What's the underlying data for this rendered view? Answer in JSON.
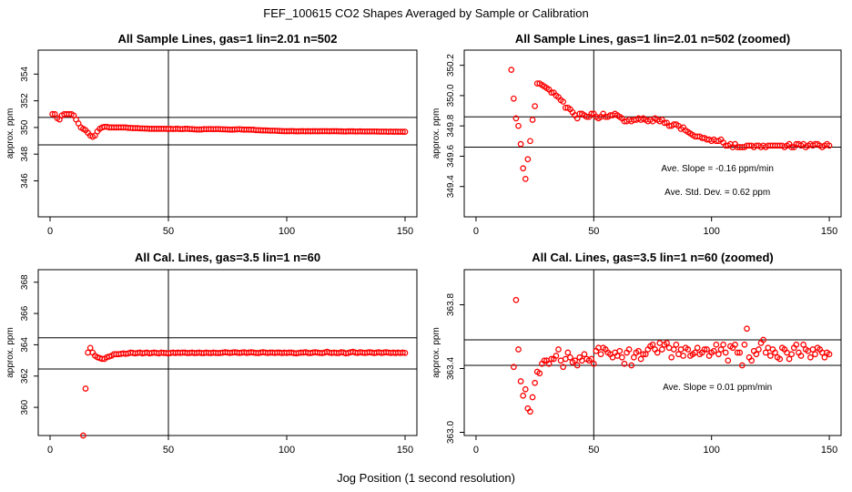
{
  "figure": {
    "title": "FEF_100615  CO2 Shapes Averaged by Sample or Calibration",
    "xlabel": "Jog Position (1 second resolution)"
  },
  "colors": {
    "points": "#ff0000",
    "lines": "#000000"
  },
  "chart_data": [
    {
      "type": "scatter",
      "title": "All Sample Lines, gas=1 lin=2.01 n=502",
      "ylabel": "approx. ppm",
      "xlim": [
        -5,
        155
      ],
      "ylim": [
        343.3,
        355.8
      ],
      "xticks": [
        0,
        50,
        100,
        150
      ],
      "yticks": [
        346,
        348,
        350,
        352,
        354
      ],
      "vline": 50,
      "hlines": [
        350.75,
        348.7
      ],
      "annotations": [],
      "x": [
        1,
        2,
        3,
        4,
        5,
        6,
        7,
        8,
        9,
        10,
        11,
        12,
        13,
        14,
        15,
        16,
        17,
        18,
        19,
        20,
        21,
        22,
        23,
        24,
        25,
        26,
        27,
        28,
        29,
        30,
        31,
        32,
        33,
        34,
        35,
        36,
        37,
        38,
        39,
        40,
        41,
        42,
        43,
        44,
        45,
        46,
        47,
        48,
        49,
        50,
        51,
        52,
        53,
        54,
        55,
        56,
        57,
        58,
        59,
        60,
        61,
        62,
        63,
        64,
        65,
        66,
        67,
        68,
        69,
        70,
        71,
        72,
        73,
        74,
        75,
        76,
        77,
        78,
        79,
        80,
        81,
        82,
        83,
        84,
        85,
        86,
        87,
        88,
        89,
        90,
        91,
        92,
        93,
        94,
        95,
        96,
        97,
        98,
        99,
        100,
        101,
        102,
        103,
        104,
        105,
        106,
        107,
        108,
        109,
        110,
        111,
        112,
        113,
        114,
        115,
        116,
        117,
        118,
        119,
        120,
        121,
        122,
        123,
        124,
        125,
        126,
        127,
        128,
        129,
        130,
        131,
        132,
        133,
        134,
        135,
        136,
        137,
        138,
        139,
        140,
        141,
        142,
        143,
        144,
        145,
        146,
        147,
        148,
        149,
        150
      ],
      "y": [
        351.0,
        351.0,
        350.7,
        350.6,
        350.9,
        351.0,
        351.0,
        351.0,
        351.0,
        350.9,
        350.6,
        350.3,
        350.0,
        349.9,
        349.8,
        349.6,
        349.4,
        349.3,
        349.4,
        349.7,
        349.9,
        350.0,
        350.05,
        350.05,
        350.0,
        350.0,
        350.0,
        350.0,
        350.0,
        350.0,
        350.0,
        350.0,
        349.97,
        349.97,
        349.95,
        349.95,
        349.95,
        349.93,
        349.93,
        349.92,
        349.92,
        349.9,
        349.9,
        349.9,
        349.9,
        349.9,
        349.9,
        349.9,
        349.9,
        349.88,
        349.9,
        349.88,
        349.9,
        349.9,
        349.88,
        349.88,
        349.9,
        349.9,
        349.88,
        349.88,
        349.86,
        349.85,
        349.85,
        349.85,
        349.88,
        349.87,
        349.88,
        349.88,
        349.87,
        349.88,
        349.88,
        349.87,
        349.86,
        349.86,
        349.85,
        349.84,
        349.84,
        349.85,
        349.86,
        349.87,
        349.85,
        349.84,
        349.84,
        349.84,
        349.83,
        349.83,
        349.8,
        349.8,
        349.79,
        349.78,
        349.78,
        349.77,
        349.76,
        349.76,
        349.76,
        349.75,
        349.74,
        349.73,
        349.72,
        349.72,
        349.72,
        349.73,
        349.72,
        349.71,
        349.71,
        349.72,
        349.72,
        349.71,
        349.72,
        349.71,
        349.72,
        349.72,
        349.71,
        349.72,
        349.72,
        349.72,
        349.72,
        349.71,
        349.72,
        349.72,
        349.72,
        349.71,
        349.71,
        349.7,
        349.7,
        349.71,
        349.71,
        349.71,
        349.7,
        349.7,
        349.71,
        349.7,
        349.7,
        349.7,
        349.7,
        349.7,
        349.7,
        349.7,
        349.69,
        349.69,
        349.69,
        349.69,
        349.68,
        349.69,
        349.68,
        349.69,
        349.68,
        349.68,
        349.68,
        349.68
      ]
    },
    {
      "type": "scatter",
      "title": "All Sample Lines, gas=1 lin=2.01 n=502 (zoomed)",
      "ylabel": "approx. ppm",
      "xlim": [
        -5,
        155
      ],
      "ylim": [
        349.2,
        350.3
      ],
      "xticks": [
        0,
        50,
        100,
        150
      ],
      "yticks": [
        349.4,
        349.6,
        349.8,
        350.0,
        350.2
      ],
      "vline": 50,
      "hlines": [
        349.86,
        349.66
      ],
      "annotations": [
        "Ave. Slope =  -0.16  ppm/min",
        "Ave. Std. Dev. =  0.62  ppm"
      ],
      "x": [
        15,
        16,
        17,
        18,
        19,
        20,
        21,
        22,
        23,
        24,
        25,
        26,
        27,
        28,
        29,
        30,
        31,
        32,
        33,
        34,
        35,
        36,
        37,
        38,
        39,
        40,
        41,
        42,
        43,
        44,
        45,
        46,
        47,
        48,
        49,
        50,
        51,
        52,
        53,
        54,
        55,
        56,
        57,
        58,
        59,
        60,
        61,
        62,
        63,
        64,
        65,
        66,
        67,
        68,
        69,
        70,
        71,
        72,
        73,
        74,
        75,
        76,
        77,
        78,
        79,
        80,
        81,
        82,
        83,
        84,
        85,
        86,
        87,
        88,
        89,
        90,
        91,
        92,
        93,
        94,
        95,
        96,
        97,
        98,
        99,
        100,
        101,
        102,
        103,
        104,
        105,
        106,
        107,
        108,
        109,
        110,
        111,
        112,
        113,
        114,
        115,
        116,
        117,
        118,
        119,
        120,
        121,
        122,
        123,
        124,
        125,
        126,
        127,
        128,
        129,
        130,
        131,
        132,
        133,
        134,
        135,
        136,
        137,
        138,
        139,
        140,
        141,
        142,
        143,
        144,
        145,
        146,
        147,
        148,
        149,
        150
      ],
      "y": [
        350.17,
        349.98,
        349.85,
        349.8,
        349.68,
        349.52,
        349.45,
        349.58,
        349.7,
        349.84,
        349.93,
        350.08,
        350.08,
        350.07,
        350.06,
        350.05,
        350.04,
        350.02,
        350.02,
        350.0,
        349.99,
        349.97,
        349.96,
        349.92,
        349.92,
        349.91,
        349.89,
        349.87,
        349.85,
        349.88,
        349.88,
        349.87,
        349.86,
        349.86,
        349.88,
        349.88,
        349.86,
        349.85,
        349.86,
        349.88,
        349.86,
        349.86,
        349.87,
        349.87,
        349.88,
        349.87,
        349.86,
        349.85,
        349.83,
        349.83,
        349.84,
        349.83,
        349.84,
        349.84,
        349.85,
        349.84,
        349.85,
        349.84,
        349.83,
        349.84,
        349.83,
        349.85,
        349.84,
        349.83,
        349.84,
        349.82,
        349.82,
        349.8,
        349.8,
        349.81,
        349.81,
        349.8,
        349.78,
        349.79,
        349.77,
        349.76,
        349.75,
        349.74,
        349.73,
        349.73,
        349.73,
        349.72,
        349.72,
        349.71,
        349.71,
        349.7,
        349.71,
        349.7,
        349.7,
        349.71,
        349.69,
        349.67,
        349.67,
        349.68,
        349.66,
        349.68,
        349.66,
        349.66,
        349.66,
        349.66,
        349.67,
        349.67,
        349.67,
        349.66,
        349.67,
        349.67,
        349.66,
        349.67,
        349.66,
        349.67,
        349.67,
        349.67,
        349.67,
        349.67,
        349.67,
        349.67,
        349.66,
        349.67,
        349.68,
        349.66,
        349.66,
        349.68,
        349.68,
        349.67,
        349.68,
        349.66,
        349.67,
        349.68,
        349.67,
        349.68,
        349.68,
        349.67,
        349.66,
        349.67,
        349.68,
        349.67
      ]
    },
    {
      "type": "scatter",
      "title": "All Cal. Lines, gas=3.5 lin=1 n=60",
      "ylabel": "approx. ppm",
      "xlim": [
        -5,
        155
      ],
      "ylim": [
        358.2,
        368.8
      ],
      "xticks": [
        0,
        50,
        100,
        150
      ],
      "yticks": [
        360,
        362,
        364,
        366,
        368
      ],
      "vline": 50,
      "hlines": [
        364.45,
        362.45
      ],
      "annotations": [],
      "x": [
        14,
        15,
        16,
        17,
        18,
        19,
        20,
        21,
        22,
        23,
        24,
        25,
        26,
        27,
        28,
        29,
        30,
        31,
        32,
        33,
        34,
        35,
        36,
        37,
        38,
        39,
        40,
        41,
        42,
        43,
        44,
        45,
        46,
        47,
        48,
        49,
        50,
        51,
        52,
        53,
        54,
        55,
        56,
        57,
        58,
        59,
        60,
        61,
        62,
        63,
        64,
        65,
        66,
        67,
        68,
        69,
        70,
        71,
        72,
        73,
        74,
        75,
        76,
        77,
        78,
        79,
        80,
        81,
        82,
        83,
        84,
        85,
        86,
        87,
        88,
        89,
        90,
        91,
        92,
        93,
        94,
        95,
        96,
        97,
        98,
        99,
        100,
        101,
        102,
        103,
        104,
        105,
        106,
        107,
        108,
        109,
        110,
        111,
        112,
        113,
        114,
        115,
        116,
        117,
        118,
        119,
        120,
        121,
        122,
        123,
        124,
        125,
        126,
        127,
        128,
        129,
        130,
        131,
        132,
        133,
        134,
        135,
        136,
        137,
        138,
        139,
        140,
        141,
        142,
        143,
        144,
        145,
        146,
        147,
        148,
        149,
        150
      ],
      "y": [
        358.2,
        361.2,
        363.5,
        363.8,
        363.5,
        363.3,
        363.2,
        363.15,
        363.1,
        363.1,
        363.2,
        363.25,
        363.3,
        363.4,
        363.4,
        363.4,
        363.42,
        363.45,
        363.42,
        363.45,
        363.5,
        363.48,
        363.45,
        363.48,
        363.5,
        363.45,
        363.48,
        363.5,
        363.45,
        363.48,
        363.5,
        363.48,
        363.45,
        363.5,
        363.48,
        363.47,
        363.45,
        363.48,
        363.5,
        363.47,
        363.5,
        363.48,
        363.5,
        363.5,
        363.47,
        363.48,
        363.5,
        363.47,
        363.48,
        363.5,
        363.47,
        363.47,
        363.5,
        363.48,
        363.47,
        363.5,
        363.48,
        363.47,
        363.48,
        363.5,
        363.52,
        363.5,
        363.48,
        363.5,
        363.52,
        363.5,
        363.48,
        363.5,
        363.52,
        363.48,
        363.5,
        363.52,
        363.5,
        363.48,
        363.47,
        363.5,
        363.52,
        363.5,
        363.48,
        363.5,
        363.5,
        363.48,
        363.5,
        363.5,
        363.47,
        363.5,
        363.48,
        363.5,
        363.5,
        363.47,
        363.45,
        363.48,
        363.5,
        363.5,
        363.52,
        363.48,
        363.47,
        363.5,
        363.52,
        363.5,
        363.48,
        363.47,
        363.5,
        363.55,
        363.5,
        363.48,
        363.5,
        363.48,
        363.47,
        363.52,
        363.5,
        363.45,
        363.48,
        363.52,
        363.55,
        363.5,
        363.48,
        363.52,
        363.5,
        363.48,
        363.5,
        363.52,
        363.5,
        363.47,
        363.5,
        363.52,
        363.48,
        363.5,
        363.52,
        363.5,
        363.48,
        363.5,
        363.47,
        363.5,
        363.48,
        363.5,
        363.48
      ]
    },
    {
      "type": "scatter",
      "title": "All Cal. Lines, gas=3.5 lin=1 n=60 (zoomed)",
      "ylabel": "approx. ppm",
      "xlim": [
        -5,
        155
      ],
      "ylim": [
        362.98,
        364.02
      ],
      "xticks": [
        0,
        50,
        100,
        150
      ],
      "yticks": [
        363.0,
        363.4,
        363.8
      ],
      "vline": 50,
      "hlines": [
        363.58,
        363.42
      ],
      "annotations": [
        "Ave. Slope =  0.01  ppm/min"
      ],
      "x": [
        16,
        17,
        18,
        19,
        20,
        21,
        22,
        23,
        24,
        25,
        26,
        27,
        28,
        29,
        30,
        31,
        32,
        33,
        34,
        35,
        36,
        37,
        38,
        39,
        40,
        41,
        42,
        43,
        44,
        45,
        46,
        47,
        48,
        49,
        50,
        51,
        52,
        53,
        54,
        55,
        56,
        57,
        58,
        59,
        60,
        61,
        62,
        63,
        64,
        65,
        66,
        67,
        68,
        69,
        70,
        71,
        72,
        73,
        74,
        75,
        76,
        77,
        78,
        79,
        80,
        81,
        82,
        83,
        84,
        85,
        86,
        87,
        88,
        89,
        90,
        91,
        92,
        93,
        94,
        95,
        96,
        97,
        98,
        99,
        100,
        101,
        102,
        103,
        104,
        105,
        106,
        107,
        108,
        109,
        110,
        111,
        112,
        113,
        114,
        115,
        116,
        117,
        118,
        119,
        120,
        121,
        122,
        123,
        124,
        125,
        126,
        127,
        128,
        129,
        130,
        131,
        132,
        133,
        134,
        135,
        136,
        137,
        138,
        139,
        140,
        141,
        142,
        143,
        144,
        145,
        146,
        147,
        148,
        149,
        150
      ],
      "y": [
        363.41,
        363.83,
        363.52,
        363.32,
        363.23,
        363.27,
        363.15,
        363.13,
        363.22,
        363.31,
        363.38,
        363.37,
        363.43,
        363.45,
        363.45,
        363.43,
        363.46,
        363.46,
        363.48,
        363.52,
        363.45,
        363.41,
        363.46,
        363.5,
        363.47,
        363.44,
        363.45,
        363.42,
        363.47,
        363.45,
        363.49,
        363.46,
        363.45,
        363.46,
        363.43,
        363.51,
        363.53,
        363.49,
        363.53,
        363.52,
        363.5,
        363.49,
        363.47,
        363.5,
        363.48,
        363.51,
        363.47,
        363.43,
        363.5,
        363.52,
        363.42,
        363.47,
        363.5,
        363.51,
        363.46,
        363.49,
        363.49,
        363.52,
        363.54,
        363.55,
        363.52,
        363.5,
        363.56,
        363.52,
        363.55,
        363.56,
        363.53,
        363.47,
        363.52,
        363.55,
        363.49,
        363.52,
        363.48,
        363.53,
        363.52,
        363.48,
        363.49,
        363.5,
        363.53,
        363.49,
        363.5,
        363.52,
        363.52,
        363.48,
        363.5,
        363.51,
        363.55,
        363.49,
        363.52,
        363.55,
        363.5,
        363.45,
        363.54,
        363.53,
        363.55,
        363.5,
        363.5,
        363.42,
        363.55,
        363.65,
        363.47,
        363.45,
        363.51,
        363.49,
        363.52,
        363.56,
        363.58,
        363.5,
        363.53,
        363.48,
        363.52,
        363.5,
        363.47,
        363.46,
        363.53,
        363.52,
        363.5,
        363.46,
        363.49,
        363.53,
        363.55,
        363.5,
        363.48,
        363.55,
        363.52,
        363.51,
        363.47,
        363.52,
        363.49,
        363.53,
        363.52,
        363.5,
        363.47,
        363.5,
        363.49
      ]
    }
  ]
}
